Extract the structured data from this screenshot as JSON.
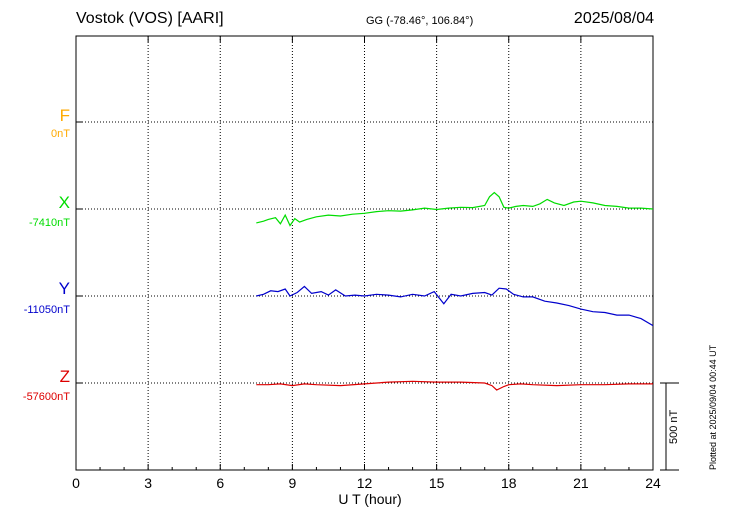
{
  "header": {
    "station": "Vostok (VOS)  [AARI]",
    "coords": "GG (-78.46°, 106.84°)",
    "date": "2025/08/04"
  },
  "plotted_note": "Plotted at 2025/09/04 00:44 UT",
  "scale_label": "500 nT",
  "colors": {
    "F": "#ffaa00",
    "X": "#00dd00",
    "Y": "#0000cc",
    "Z": "#dd0000",
    "grid": "#000000"
  },
  "components": [
    {
      "key": "F",
      "label": "F",
      "base": "0nT"
    },
    {
      "key": "X",
      "label": "X",
      "base": "-7410nT"
    },
    {
      "key": "Y",
      "label": "Y",
      "base": "-11050nT"
    },
    {
      "key": "Z",
      "label": "Z",
      "base": "-57600nT"
    }
  ],
  "chart_data": {
    "type": "line",
    "xlabel": "U T (hour)",
    "xlim": [
      0,
      24
    ],
    "xticks": [
      0,
      3,
      6,
      9,
      12,
      15,
      18,
      21,
      24
    ],
    "scale_bar_nT": 500,
    "units": "nT deviation from baseline",
    "series": [
      {
        "name": "X",
        "x": [
          7.5,
          7.8,
          8.0,
          8.3,
          8.5,
          8.7,
          8.9,
          9.1,
          9.3,
          9.6,
          10.0,
          10.5,
          11.0,
          11.5,
          12.0,
          12.5,
          13.0,
          13.5,
          14.0,
          14.5,
          15.0,
          15.5,
          16.0,
          16.5,
          17.0,
          17.2,
          17.4,
          17.6,
          17.8,
          18.0,
          18.3,
          18.6,
          19.0,
          19.3,
          19.6,
          19.9,
          20.3,
          20.7,
          21.0,
          21.5,
          22.0,
          22.5,
          23.0,
          23.5,
          24.0
        ],
        "y": [
          -80,
          -70,
          -60,
          -50,
          -85,
          -35,
          -95,
          -55,
          -75,
          -60,
          -45,
          -35,
          -40,
          -30,
          -25,
          -15,
          -10,
          -12,
          -5,
          5,
          -3,
          5,
          10,
          8,
          20,
          70,
          95,
          70,
          10,
          5,
          15,
          20,
          15,
          30,
          55,
          35,
          20,
          40,
          45,
          35,
          20,
          15,
          5,
          5,
          0
        ]
      },
      {
        "name": "Y",
        "x": [
          7.5,
          7.8,
          8.1,
          8.4,
          8.7,
          8.9,
          9.2,
          9.5,
          9.8,
          10.2,
          10.5,
          10.8,
          11.2,
          11.6,
          12.0,
          12.5,
          13.0,
          13.5,
          14.0,
          14.5,
          14.9,
          15.3,
          15.6,
          16.0,
          16.5,
          17.0,
          17.3,
          17.6,
          17.9,
          18.2,
          18.6,
          19.0,
          19.5,
          20.0,
          20.5,
          21.0,
          21.5,
          22.0,
          22.5,
          23.0,
          23.5,
          24.0
        ],
        "y": [
          0,
          10,
          30,
          25,
          40,
          0,
          20,
          55,
          15,
          25,
          5,
          35,
          0,
          5,
          0,
          10,
          5,
          -5,
          10,
          0,
          25,
          -45,
          10,
          0,
          15,
          20,
          5,
          45,
          40,
          10,
          -5,
          -5,
          -30,
          -40,
          -55,
          -75,
          -90,
          -95,
          -110,
          -110,
          -130,
          -170
        ]
      },
      {
        "name": "Z",
        "x": [
          7.5,
          8.0,
          8.5,
          9.0,
          9.5,
          10.0,
          11.0,
          12.0,
          13.0,
          14.0,
          15.0,
          16.0,
          17.0,
          17.3,
          17.5,
          17.8,
          18.0,
          18.5,
          19.0,
          20.0,
          21.0,
          22.0,
          23.0,
          24.0
        ],
        "y": [
          -10,
          -10,
          -5,
          -15,
          -5,
          -10,
          -15,
          -5,
          5,
          10,
          5,
          5,
          0,
          -15,
          -40,
          -20,
          -10,
          -5,
          -10,
          -15,
          -10,
          -10,
          -5,
          -5
        ]
      }
    ]
  }
}
